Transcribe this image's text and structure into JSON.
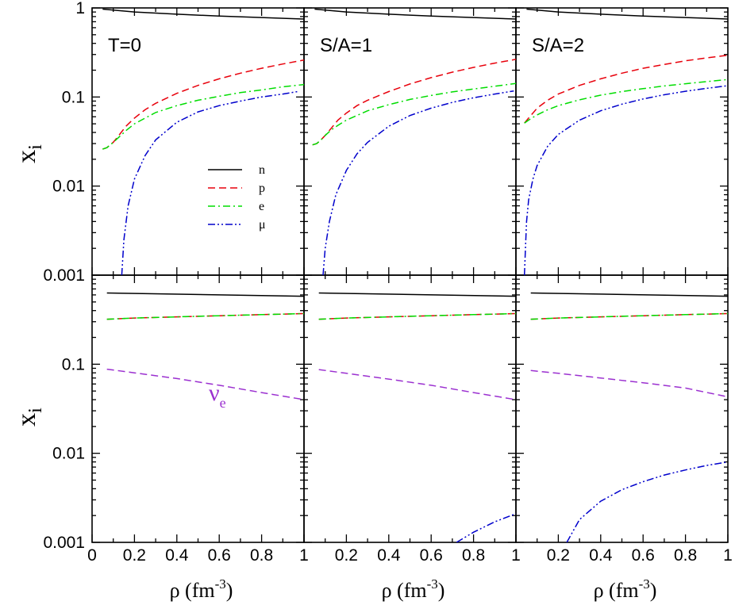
{
  "chart_data": {
    "type": "line",
    "layout": "2x3 panels, shared axes",
    "x_label": {
      "main": "ρ (fm",
      "sup": "-3",
      "close": ")"
    },
    "y_label": {
      "main": "x",
      "sub": "i"
    },
    "x_range": [
      0,
      1
    ],
    "x_ticks": [
      0,
      0.2,
      0.4,
      0.6,
      0.8,
      1
    ],
    "x_tick_labels": [
      "0",
      "0.2",
      "0.4",
      "0.6",
      "0.8",
      "1"
    ],
    "y_scale": "log",
    "y_range": [
      0.001,
      1
    ],
    "y_ticks": [
      0.001,
      0.01,
      0.1,
      1
    ],
    "y_tick_labels": [
      "0.001",
      "0.01",
      "0.1",
      "1"
    ],
    "legend": {
      "placement": "top-left panel, center-right",
      "entries": [
        {
          "label": "n",
          "color": "#000000",
          "dash": "solid"
        },
        {
          "label": "p",
          "color": "#e8000b",
          "dash": "dashed"
        },
        {
          "label": "e",
          "color": "#00dd00",
          "dash": "dash-dot"
        },
        {
          "label": "μ",
          "color": "#0000cc",
          "dash": "dash-dot-dot"
        }
      ]
    },
    "annotation": {
      "main": "ν",
      "sub": "e",
      "color": "#9b30d0"
    },
    "panels": [
      {
        "row": 0,
        "col": 0,
        "label": "T=0",
        "series": [
          {
            "name": "n",
            "x": [
              0.05,
              0.2,
              0.4,
              0.6,
              0.8,
              1.0
            ],
            "y": [
              0.97,
              0.9,
              0.85,
              0.81,
              0.78,
              0.75
            ]
          },
          {
            "name": "p",
            "x": [
              0.05,
              0.07,
              0.1,
              0.13,
              0.16,
              0.2,
              0.25,
              0.3,
              0.4,
              0.5,
              0.6,
              0.7,
              0.8,
              0.9,
              1.0
            ],
            "y": [
              0.026,
              0.027,
              0.031,
              0.038,
              0.047,
              0.058,
              0.072,
              0.085,
              0.11,
              0.135,
              0.16,
              0.185,
              0.21,
              0.235,
              0.26
            ]
          },
          {
            "name": "e",
            "x": [
              0.05,
              0.07,
              0.1,
              0.13,
              0.16,
              0.2,
              0.3,
              0.4,
              0.5,
              0.6,
              0.7,
              0.8,
              0.9,
              1.0
            ],
            "y": [
              0.026,
              0.027,
              0.031,
              0.036,
              0.042,
              0.05,
              0.067,
              0.08,
              0.092,
              0.102,
              0.112,
              0.12,
              0.13,
              0.138
            ]
          },
          {
            "name": "μ",
            "x": [
              0.14,
              0.15,
              0.17,
              0.2,
              0.25,
              0.3,
              0.4,
              0.5,
              0.6,
              0.7,
              0.8,
              0.9,
              0.97
            ],
            "y": [
              0.001,
              0.0025,
              0.006,
              0.012,
              0.022,
              0.033,
              0.052,
              0.068,
              0.08,
              0.09,
              0.1,
              0.108,
              0.115
            ]
          }
        ]
      },
      {
        "row": 0,
        "col": 1,
        "label": "S/A=1",
        "series": [
          {
            "name": "n",
            "x": [
              0.05,
              0.2,
              0.4,
              0.6,
              0.8,
              1.0
            ],
            "y": [
              0.97,
              0.9,
              0.85,
              0.81,
              0.78,
              0.75
            ]
          },
          {
            "name": "p",
            "x": [
              0.04,
              0.06,
              0.08,
              0.1,
              0.13,
              0.16,
              0.2,
              0.25,
              0.3,
              0.4,
              0.5,
              0.6,
              0.7,
              0.8,
              0.9,
              1.0
            ],
            "y": [
              0.029,
              0.03,
              0.033,
              0.037,
              0.045,
              0.055,
              0.066,
              0.08,
              0.092,
              0.115,
              0.14,
              0.165,
              0.19,
              0.215,
              0.24,
              0.265
            ]
          },
          {
            "name": "e",
            "x": [
              0.04,
              0.06,
              0.08,
              0.1,
              0.13,
              0.16,
              0.2,
              0.3,
              0.4,
              0.5,
              0.6,
              0.7,
              0.8,
              0.9,
              1.0
            ],
            "y": [
              0.029,
              0.03,
              0.033,
              0.037,
              0.043,
              0.048,
              0.055,
              0.07,
              0.082,
              0.094,
              0.104,
              0.114,
              0.123,
              0.132,
              0.142
            ]
          },
          {
            "name": "μ",
            "x": [
              0.09,
              0.1,
              0.12,
              0.15,
              0.2,
              0.25,
              0.3,
              0.4,
              0.5,
              0.6,
              0.7,
              0.8,
              0.9,
              0.99
            ],
            "y": [
              0.001,
              0.002,
              0.004,
              0.008,
              0.015,
              0.023,
              0.031,
              0.047,
              0.062,
              0.075,
              0.087,
              0.098,
              0.108,
              0.117
            ]
          }
        ]
      },
      {
        "row": 0,
        "col": 2,
        "label": "S/A=2",
        "series": [
          {
            "name": "n",
            "x": [
              0.05,
              0.2,
              0.4,
              0.6,
              0.8,
              1.0
            ],
            "y": [
              0.97,
              0.9,
              0.85,
              0.81,
              0.78,
              0.75
            ]
          },
          {
            "name": "p",
            "x": [
              0.04,
              0.06,
              0.08,
              0.1,
              0.15,
              0.2,
              0.3,
              0.4,
              0.5,
              0.6,
              0.7,
              0.8,
              0.9,
              1.0
            ],
            "y": [
              0.051,
              0.058,
              0.066,
              0.075,
              0.092,
              0.108,
              0.135,
              0.16,
              0.185,
              0.21,
              0.232,
              0.255,
              0.275,
              0.295
            ]
          },
          {
            "name": "e",
            "x": [
              0.04,
              0.06,
              0.08,
              0.1,
              0.15,
              0.2,
              0.3,
              0.4,
              0.5,
              0.6,
              0.7,
              0.8,
              0.9,
              1.0
            ],
            "y": [
              0.051,
              0.055,
              0.059,
              0.063,
              0.072,
              0.08,
              0.093,
              0.105,
              0.115,
              0.124,
              0.133,
              0.141,
              0.149,
              0.157
            ]
          },
          {
            "name": "μ",
            "x": [
              0.04,
              0.045,
              0.05,
              0.06,
              0.08,
              0.1,
              0.15,
              0.2,
              0.3,
              0.4,
              0.5,
              0.6,
              0.7,
              0.8,
              0.9,
              1.0
            ],
            "y": [
              0.001,
              0.002,
              0.004,
              0.007,
              0.012,
              0.017,
              0.028,
              0.038,
              0.055,
              0.07,
              0.083,
              0.095,
              0.106,
              0.116,
              0.125,
              0.134
            ]
          }
        ]
      },
      {
        "row": 1,
        "col": 0,
        "series": [
          {
            "name": "n",
            "x": [
              0.07,
              1.0
            ],
            "y": [
              0.63,
              0.58
            ]
          },
          {
            "name": "p",
            "x": [
              0.07,
              0.2,
              0.4,
              0.6,
              0.8,
              1.0
            ],
            "y": [
              0.32,
              0.33,
              0.34,
              0.35,
              0.36,
              0.37
            ]
          },
          {
            "name": "e",
            "x": [
              0.07,
              0.2,
              0.4,
              0.6,
              0.8,
              1.0
            ],
            "y": [
              0.32,
              0.33,
              0.34,
              0.35,
              0.36,
              0.37
            ]
          },
          {
            "name": "ν_e",
            "x": [
              0.07,
              0.2,
              0.4,
              0.6,
              0.8,
              1.0
            ],
            "y": [
              0.088,
              0.08,
              0.069,
              0.058,
              0.048,
              0.04
            ]
          }
        ]
      },
      {
        "row": 1,
        "col": 1,
        "series": [
          {
            "name": "n",
            "x": [
              0.07,
              1.0
            ],
            "y": [
              0.63,
              0.58
            ]
          },
          {
            "name": "p",
            "x": [
              0.07,
              0.2,
              0.4,
              0.6,
              0.8,
              1.0
            ],
            "y": [
              0.32,
              0.33,
              0.34,
              0.35,
              0.36,
              0.37
            ]
          },
          {
            "name": "e",
            "x": [
              0.07,
              0.2,
              0.4,
              0.6,
              0.8,
              1.0
            ],
            "y": [
              0.32,
              0.33,
              0.34,
              0.35,
              0.36,
              0.37
            ]
          },
          {
            "name": "ν_e",
            "x": [
              0.07,
              0.2,
              0.4,
              0.6,
              0.8,
              1.0
            ],
            "y": [
              0.087,
              0.079,
              0.068,
              0.058,
              0.048,
              0.04
            ]
          },
          {
            "name": "μ",
            "x": [
              0.72,
              0.8,
              0.9,
              1.0
            ],
            "y": [
              0.001,
              0.0013,
              0.0017,
              0.0021
            ]
          }
        ]
      },
      {
        "row": 1,
        "col": 2,
        "series": [
          {
            "name": "n",
            "x": [
              0.07,
              1.0
            ],
            "y": [
              0.63,
              0.58
            ]
          },
          {
            "name": "p",
            "x": [
              0.07,
              0.2,
              0.4,
              0.6,
              0.8,
              1.0
            ],
            "y": [
              0.32,
              0.33,
              0.34,
              0.35,
              0.36,
              0.37
            ]
          },
          {
            "name": "e",
            "x": [
              0.07,
              0.2,
              0.4,
              0.6,
              0.8,
              1.0
            ],
            "y": [
              0.32,
              0.33,
              0.34,
              0.35,
              0.36,
              0.37
            ]
          },
          {
            "name": "ν_e",
            "x": [
              0.07,
              0.2,
              0.4,
              0.6,
              0.8,
              1.0
            ],
            "y": [
              0.085,
              0.079,
              0.07,
              0.062,
              0.054,
              0.043
            ]
          },
          {
            "name": "μ",
            "x": [
              0.24,
              0.3,
              0.4,
              0.5,
              0.6,
              0.7,
              0.8,
              0.9,
              1.0
            ],
            "y": [
              0.001,
              0.0018,
              0.0029,
              0.0039,
              0.0048,
              0.0057,
              0.0065,
              0.0073,
              0.008
            ]
          }
        ]
      }
    ]
  }
}
